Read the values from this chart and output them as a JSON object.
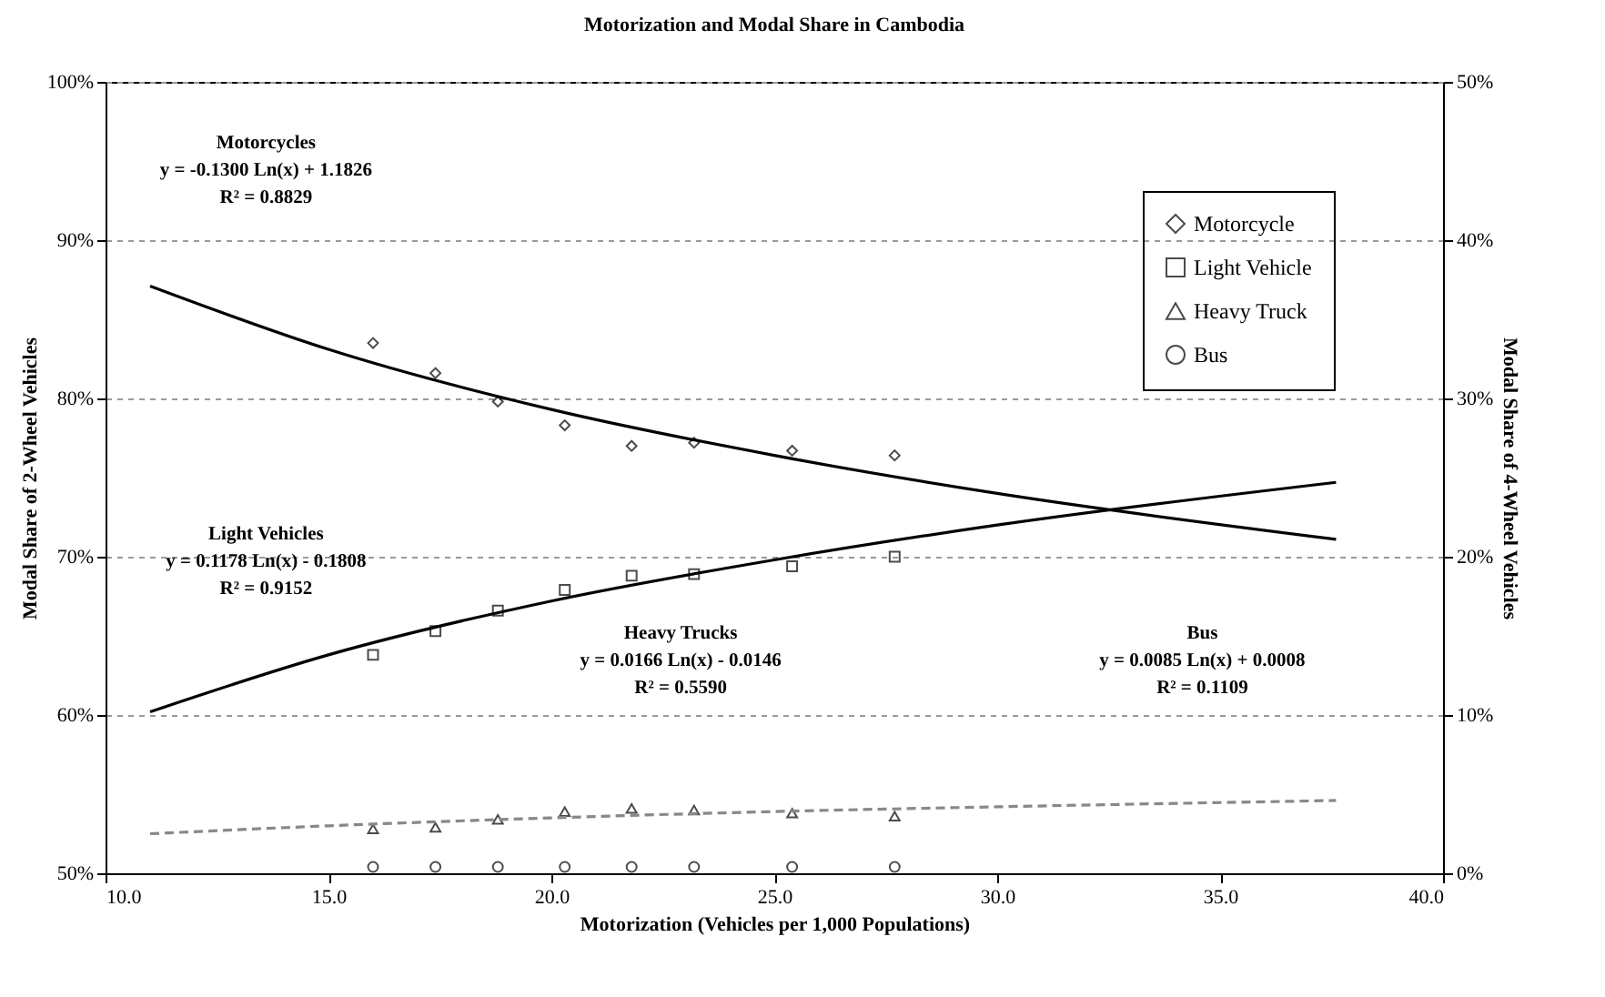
{
  "chart_data": {
    "type": "scatter",
    "title": "Motorization and Modal Share in Cambodia",
    "xlabel": "Motorization (Vehicles per 1,000 Populations)",
    "ylabel": "Modal Share of 2-Wheel Vehicles",
    "y2label": "Modal Share of 4-Wheel Vehicles",
    "x": [
      16.0,
      17.4,
      18.8,
      20.3,
      21.8,
      23.2,
      25.4,
      27.7
    ],
    "series": [
      {
        "name": "Motorcycle",
        "marker": "diamond",
        "color": "#000000",
        "values": [
          83.5,
          81.6,
          79.8,
          78.3,
          77.0,
          77.2,
          76.7,
          76.4
        ]
      },
      {
        "name": "Light Vehicle",
        "axis": "y2",
        "marker": "square",
        "color": "#000000",
        "values": [
          13.8,
          15.3,
          16.6,
          17.9,
          18.8,
          18.9,
          19.4,
          20.0
        ]
      },
      {
        "name": "Heavy Truck",
        "axis": "y2",
        "marker": "triangle",
        "color": "#000000",
        "values": [
          2.8,
          2.9,
          3.4,
          3.9,
          4.1,
          4.0,
          3.8,
          3.6
        ]
      },
      {
        "name": "Bus",
        "axis": "y2",
        "marker": "circle",
        "color": "#000000",
        "values": [
          0.4,
          0.4,
          0.4,
          0.4,
          0.4,
          0.4,
          0.4,
          0.4
        ]
      },
      {
        "type": "line",
        "color": "#000000",
        "line_style": "solid",
        "x": [
          11,
          15,
          20,
          25,
          30,
          37.6
        ],
        "values": [
          87.1,
          83.1,
          79.3,
          76.4,
          74.0,
          71.1
        ]
      },
      {
        "type": "line",
        "axis": "y2",
        "color": "#000000",
        "line_style": "solid",
        "x": [
          11,
          15,
          20,
          25,
          30,
          37.6
        ],
        "values": [
          10.2,
          13.8,
          17.2,
          19.8,
          22.0,
          24.7
        ]
      },
      {
        "type": "line",
        "axis": "y2",
        "color": "#888888",
        "line_style": "dashed",
        "x": [
          11,
          15,
          20,
          25,
          30,
          37.6
        ],
        "values": [
          2.5,
          3.0,
          3.5,
          3.9,
          4.2,
          4.6
        ]
      }
    ],
    "xlim": [
      10,
      40
    ],
    "xticks": [
      {
        "value": 10,
        "label": "10.0"
      },
      {
        "value": 15,
        "label": "15.0"
      },
      {
        "value": 20,
        "label": "20.0"
      },
      {
        "value": 25,
        "label": "25.0"
      },
      {
        "value": 30,
        "label": "30.0"
      },
      {
        "value": 35,
        "label": "35.0"
      },
      {
        "value": 40,
        "label": "40.0"
      }
    ],
    "ylim": [
      50,
      100
    ],
    "yticks": [
      {
        "value": 50,
        "label": "50%"
      },
      {
        "value": 60,
        "label": "60%"
      },
      {
        "value": 70,
        "label": "70%"
      },
      {
        "value": 80,
        "label": "80%"
      },
      {
        "value": 90,
        "label": "90%"
      },
      {
        "value": 100,
        "label": "100%"
      }
    ],
    "y2lim": [
      0,
      50
    ],
    "y2ticks": [
      {
        "value": 0,
        "label": "0%"
      },
      {
        "value": 10,
        "label": "10%"
      },
      {
        "value": 20,
        "label": "20%"
      },
      {
        "value": 30,
        "label": "30%"
      },
      {
        "value": 40,
        "label": "40%"
      },
      {
        "value": 50,
        "label": "50%"
      }
    ],
    "grid": "y",
    "legend": "top right",
    "annotations": [
      "Motorcycles\ny = -0.1300 Ln(x) + 1.1826\nR² = 0.8829",
      "Light Vehicles\ny = 0.1178 Ln(x) - 0.1808\nR² = 0.9152",
      "Heavy Trucks\ny = 0.0166 Ln(x) - 0.0146\nR² = 0.5590",
      "Bus\ny = 0.0085 Ln(x) + 0.0008\nR² = 0.1109"
    ]
  }
}
